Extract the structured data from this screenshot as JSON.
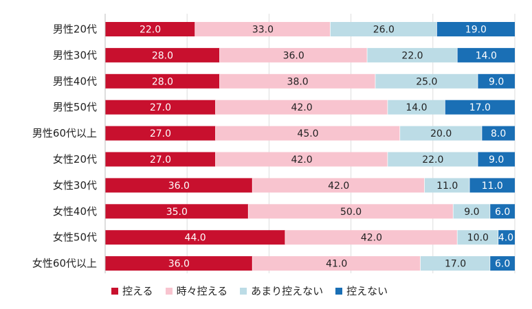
{
  "chart_data": {
    "type": "bar",
    "orientation": "horizontal",
    "stacked": true,
    "percent": true,
    "categories": [
      "男性20代",
      "男性30代",
      "男性40代",
      "男性50代",
      "男性60代以上",
      "女性20代",
      "女性30代",
      "女性40代",
      "女性50代",
      "女性60代以上"
    ],
    "series": [
      {
        "name": "控える",
        "color": "#c8102e",
        "label_color": "#ffffff",
        "values": [
          22.0,
          28.0,
          28.0,
          27.0,
          27.0,
          27.0,
          36.0,
          35.0,
          44.0,
          36.0
        ]
      },
      {
        "name": "時々控える",
        "color": "#f8c4cf",
        "label_color": "#222222",
        "values": [
          33.0,
          36.0,
          38.0,
          42.0,
          45.0,
          42.0,
          42.0,
          50.0,
          42.0,
          41.0
        ]
      },
      {
        "name": "あまり控えない",
        "color": "#bcdce6",
        "label_color": "#222222",
        "values": [
          26.0,
          22.0,
          25.0,
          14.0,
          20.0,
          22.0,
          11.0,
          9.0,
          10.0,
          17.0
        ]
      },
      {
        "name": "控えない",
        "color": "#1a6fb5",
        "label_color": "#ffffff",
        "values": [
          19.0,
          14.0,
          9.0,
          17.0,
          8.0,
          9.0,
          11.0,
          6.0,
          4.0,
          6.0
        ]
      }
    ],
    "xlim": [
      0,
      100
    ],
    "grid": true,
    "legend_position": "bottom-left"
  }
}
